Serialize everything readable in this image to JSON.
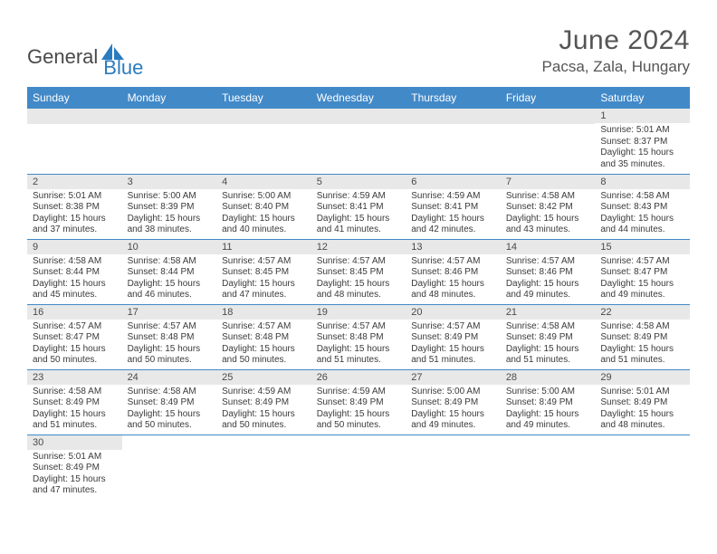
{
  "logo": {
    "text1": "General",
    "text2": "Blue",
    "shape_color": "#2b7bbf"
  },
  "title": "June 2024",
  "location": "Pacsa, Zala, Hungary",
  "header_bg": "#4289c8",
  "header_fg": "#ffffff",
  "daynum_bg": "#e8e8e8",
  "border_color": "#4289c8",
  "weekdays": [
    "Sunday",
    "Monday",
    "Tuesday",
    "Wednesday",
    "Thursday",
    "Friday",
    "Saturday"
  ],
  "weeks": [
    [
      null,
      null,
      null,
      null,
      null,
      null,
      {
        "n": "1",
        "sunrise": "5:01 AM",
        "sunset": "8:37 PM",
        "dl_h": "15",
        "dl_m": "35"
      }
    ],
    [
      {
        "n": "2",
        "sunrise": "5:01 AM",
        "sunset": "8:38 PM",
        "dl_h": "15",
        "dl_m": "37"
      },
      {
        "n": "3",
        "sunrise": "5:00 AM",
        "sunset": "8:39 PM",
        "dl_h": "15",
        "dl_m": "38"
      },
      {
        "n": "4",
        "sunrise": "5:00 AM",
        "sunset": "8:40 PM",
        "dl_h": "15",
        "dl_m": "40"
      },
      {
        "n": "5",
        "sunrise": "4:59 AM",
        "sunset": "8:41 PM",
        "dl_h": "15",
        "dl_m": "41"
      },
      {
        "n": "6",
        "sunrise": "4:59 AM",
        "sunset": "8:41 PM",
        "dl_h": "15",
        "dl_m": "42"
      },
      {
        "n": "7",
        "sunrise": "4:58 AM",
        "sunset": "8:42 PM",
        "dl_h": "15",
        "dl_m": "43"
      },
      {
        "n": "8",
        "sunrise": "4:58 AM",
        "sunset": "8:43 PM",
        "dl_h": "15",
        "dl_m": "44"
      }
    ],
    [
      {
        "n": "9",
        "sunrise": "4:58 AM",
        "sunset": "8:44 PM",
        "dl_h": "15",
        "dl_m": "45"
      },
      {
        "n": "10",
        "sunrise": "4:58 AM",
        "sunset": "8:44 PM",
        "dl_h": "15",
        "dl_m": "46"
      },
      {
        "n": "11",
        "sunrise": "4:57 AM",
        "sunset": "8:45 PM",
        "dl_h": "15",
        "dl_m": "47"
      },
      {
        "n": "12",
        "sunrise": "4:57 AM",
        "sunset": "8:45 PM",
        "dl_h": "15",
        "dl_m": "48"
      },
      {
        "n": "13",
        "sunrise": "4:57 AM",
        "sunset": "8:46 PM",
        "dl_h": "15",
        "dl_m": "48"
      },
      {
        "n": "14",
        "sunrise": "4:57 AM",
        "sunset": "8:46 PM",
        "dl_h": "15",
        "dl_m": "49"
      },
      {
        "n": "15",
        "sunrise": "4:57 AM",
        "sunset": "8:47 PM",
        "dl_h": "15",
        "dl_m": "49"
      }
    ],
    [
      {
        "n": "16",
        "sunrise": "4:57 AM",
        "sunset": "8:47 PM",
        "dl_h": "15",
        "dl_m": "50"
      },
      {
        "n": "17",
        "sunrise": "4:57 AM",
        "sunset": "8:48 PM",
        "dl_h": "15",
        "dl_m": "50"
      },
      {
        "n": "18",
        "sunrise": "4:57 AM",
        "sunset": "8:48 PM",
        "dl_h": "15",
        "dl_m": "50"
      },
      {
        "n": "19",
        "sunrise": "4:57 AM",
        "sunset": "8:48 PM",
        "dl_h": "15",
        "dl_m": "51"
      },
      {
        "n": "20",
        "sunrise": "4:57 AM",
        "sunset": "8:49 PM",
        "dl_h": "15",
        "dl_m": "51"
      },
      {
        "n": "21",
        "sunrise": "4:58 AM",
        "sunset": "8:49 PM",
        "dl_h": "15",
        "dl_m": "51"
      },
      {
        "n": "22",
        "sunrise": "4:58 AM",
        "sunset": "8:49 PM",
        "dl_h": "15",
        "dl_m": "51"
      }
    ],
    [
      {
        "n": "23",
        "sunrise": "4:58 AM",
        "sunset": "8:49 PM",
        "dl_h": "15",
        "dl_m": "51"
      },
      {
        "n": "24",
        "sunrise": "4:58 AM",
        "sunset": "8:49 PM",
        "dl_h": "15",
        "dl_m": "50"
      },
      {
        "n": "25",
        "sunrise": "4:59 AM",
        "sunset": "8:49 PM",
        "dl_h": "15",
        "dl_m": "50"
      },
      {
        "n": "26",
        "sunrise": "4:59 AM",
        "sunset": "8:49 PM",
        "dl_h": "15",
        "dl_m": "50"
      },
      {
        "n": "27",
        "sunrise": "5:00 AM",
        "sunset": "8:49 PM",
        "dl_h": "15",
        "dl_m": "49"
      },
      {
        "n": "28",
        "sunrise": "5:00 AM",
        "sunset": "8:49 PM",
        "dl_h": "15",
        "dl_m": "49"
      },
      {
        "n": "29",
        "sunrise": "5:01 AM",
        "sunset": "8:49 PM",
        "dl_h": "15",
        "dl_m": "48"
      }
    ],
    [
      {
        "n": "30",
        "sunrise": "5:01 AM",
        "sunset": "8:49 PM",
        "dl_h": "15",
        "dl_m": "47"
      },
      null,
      null,
      null,
      null,
      null,
      null
    ]
  ],
  "labels": {
    "sunrise": "Sunrise:",
    "sunset": "Sunset:",
    "daylight": "Daylight:",
    "hours": "hours",
    "and": "and",
    "minutes": "minutes."
  }
}
